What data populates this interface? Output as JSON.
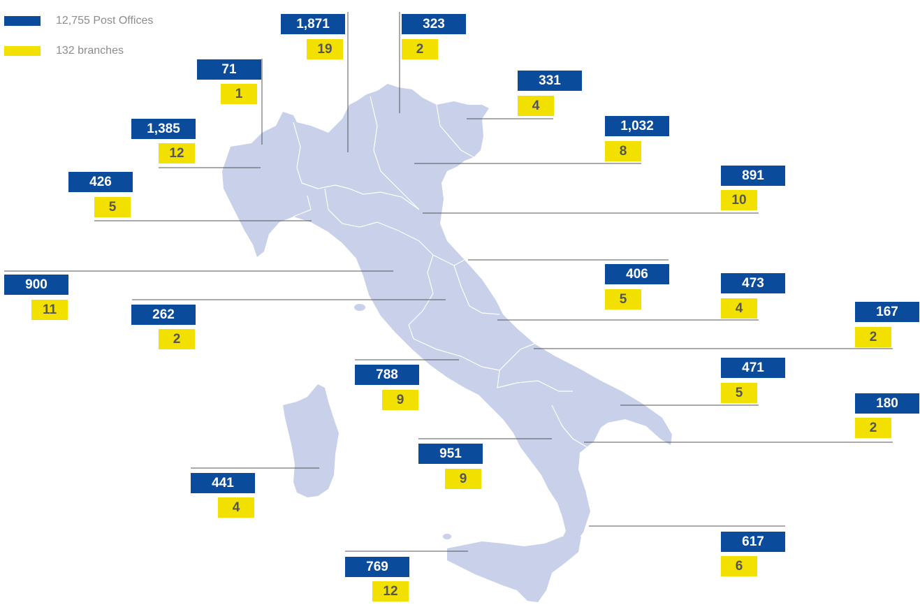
{
  "colors": {
    "post_office": "#0a4b9c",
    "branch": "#f1e000",
    "map_fill": "#c8d0ea",
    "leader_line": "#555555"
  },
  "legend": [
    {
      "label": "12,755 Post Offices",
      "color": "#0a4b9c"
    },
    {
      "label": "132 branches",
      "color": "#f1e000"
    }
  ],
  "regions": [
    {
      "post_offices": "1,871",
      "branches": "19"
    },
    {
      "post_offices": "323",
      "branches": "2"
    },
    {
      "post_offices": "71",
      "branches": "1"
    },
    {
      "post_offices": "331",
      "branches": "4"
    },
    {
      "post_offices": "1,385",
      "branches": "12"
    },
    {
      "post_offices": "1,032",
      "branches": "8"
    },
    {
      "post_offices": "426",
      "branches": "5"
    },
    {
      "post_offices": "891",
      "branches": "10"
    },
    {
      "post_offices": "900",
      "branches": "11"
    },
    {
      "post_offices": "406",
      "branches": "5"
    },
    {
      "post_offices": "473",
      "branches": "4"
    },
    {
      "post_offices": "262",
      "branches": "2"
    },
    {
      "post_offices": "167",
      "branches": "2"
    },
    {
      "post_offices": "788",
      "branches": "9"
    },
    {
      "post_offices": "471",
      "branches": "5"
    },
    {
      "post_offices": "180",
      "branches": "2"
    },
    {
      "post_offices": "951",
      "branches": "9"
    },
    {
      "post_offices": "441",
      "branches": "4"
    },
    {
      "post_offices": "617",
      "branches": "6"
    },
    {
      "post_offices": "769",
      "branches": "12"
    }
  ]
}
